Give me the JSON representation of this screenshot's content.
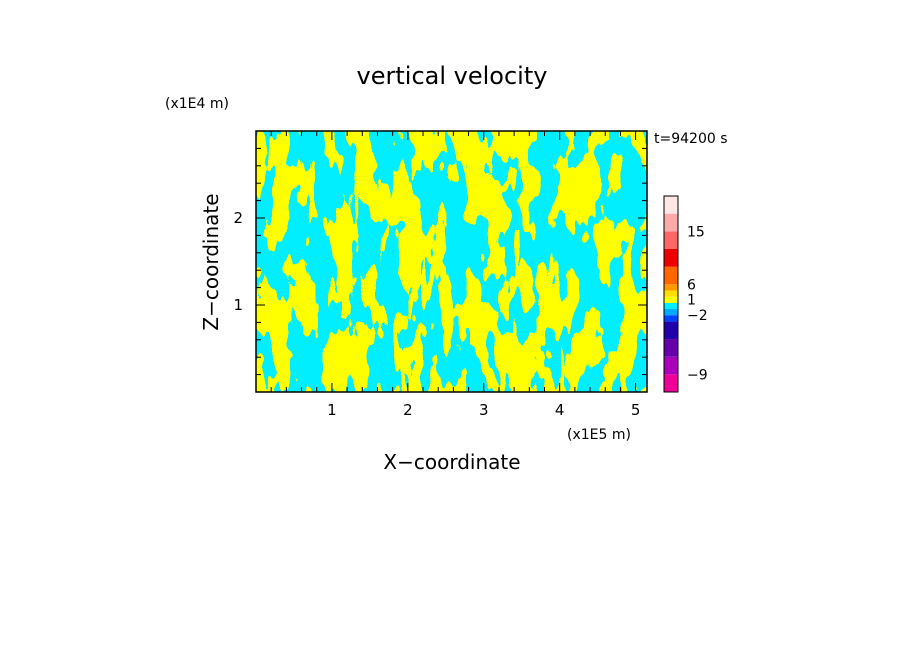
{
  "chart_data": {
    "type": "heatmap",
    "title": "vertical velocity",
    "time_label": "t=94200 s",
    "xlabel": "X−coordinate",
    "ylabel": "Z−coordinate",
    "x_scale_label": "(x1E5 m)",
    "z_scale_label": "(x1E4 m)",
    "xlim": [
      0.0,
      5.15
    ],
    "zlim": [
      0.0,
      3.0
    ],
    "x_ticks": [
      {
        "value": 1,
        "label": "1"
      },
      {
        "value": 2,
        "label": "2"
      },
      {
        "value": 3,
        "label": "3"
      },
      {
        "value": 4,
        "label": "4"
      },
      {
        "value": 5,
        "label": "5"
      }
    ],
    "z_ticks": [
      {
        "value": 1,
        "label": "1"
      },
      {
        "value": 2,
        "label": "2"
      }
    ],
    "field_colors": {
      "positive": "#ffff00",
      "negative": "#00eeff"
    },
    "colorbar": {
      "levels": [
        {
          "color": "#ee0099"
        },
        {
          "color": "#aa00bb"
        },
        {
          "color": "#6600aa"
        },
        {
          "color": "#2200aa"
        },
        {
          "color": "#0044ff"
        },
        {
          "color": "#00aaff"
        },
        {
          "color": "#00eeff"
        },
        {
          "color": "#ffff00"
        },
        {
          "color": "#ffdd00"
        },
        {
          "color": "#ff9900"
        },
        {
          "color": "#ff6600"
        },
        {
          "color": "#ee0000"
        },
        {
          "color": "#ff6666"
        },
        {
          "color": "#ffaaaa"
        },
        {
          "color": "#ffe6e6"
        }
      ],
      "labels": [
        {
          "text": "15",
          "level": 13
        },
        {
          "text": "6",
          "level": 10
        },
        {
          "text": "1",
          "level": 7.5
        },
        {
          "text": "−2",
          "level": 5
        },
        {
          "text": "−9",
          "level": 1
        }
      ]
    }
  }
}
